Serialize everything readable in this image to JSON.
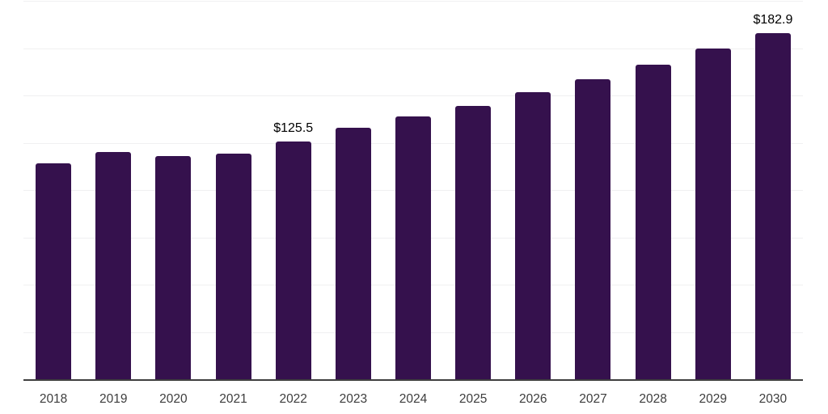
{
  "chart_data": {
    "type": "bar",
    "title": "",
    "xlabel": "",
    "ylabel": "",
    "categories": [
      "2018",
      "2019",
      "2020",
      "2021",
      "2022",
      "2023",
      "2024",
      "2025",
      "2026",
      "2027",
      "2028",
      "2029",
      "2030"
    ],
    "values": [
      114.0,
      120.0,
      117.9,
      119.2,
      125.5,
      132.7,
      138.7,
      144.4,
      151.9,
      158.5,
      166.4,
      174.6,
      182.9
    ],
    "data_labels": {
      "2022": "$125.5",
      "2030": "$182.9"
    },
    "value_prefix": "$",
    "ylim": [
      0,
      200
    ],
    "gridline_interval": 25,
    "grid": true,
    "y_axis_labels_visible": false,
    "legend": "none",
    "colors": {
      "bar": "#35114D",
      "axis_line": "#3f3f3f",
      "gridline": "#f0f0f1",
      "tick_label": "#3d3d3d",
      "data_label": "#000000",
      "background": "#ffffff"
    }
  }
}
